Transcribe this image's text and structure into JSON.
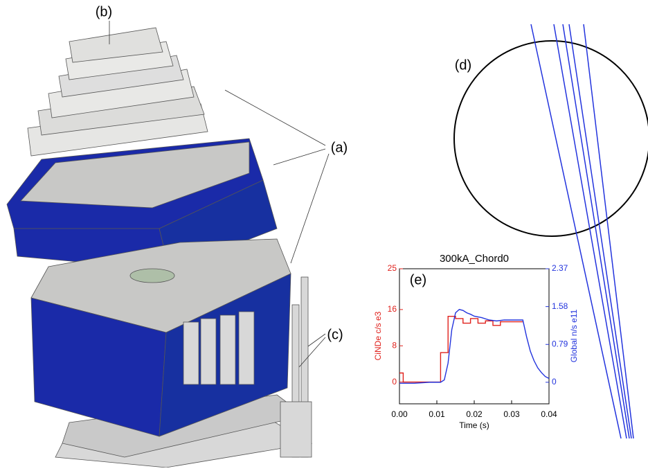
{
  "labels": {
    "a": "(a)",
    "b": "(b)",
    "c": "(c)",
    "d": "(d)",
    "e": "(e)"
  },
  "chart_data": {
    "type": "line",
    "title": "300kA_Chord0",
    "x_label": "Time (s)",
    "y_label": "CiNDe c/s e3",
    "y2_label": "Global n/s e11",
    "xlim": [
      0,
      0.04
    ],
    "xticks": [
      {
        "value": 0,
        "label": "0.00"
      },
      {
        "value": 0.01,
        "label": "0.01"
      },
      {
        "value": 0.02,
        "label": "0.02"
      },
      {
        "value": 0.03,
        "label": "0.03"
      },
      {
        "value": 0.04,
        "label": "0.04"
      }
    ],
    "ylim": [
      -4.8,
      25
    ],
    "yticks": [
      0,
      8,
      16,
      25
    ],
    "y2lim": [
      -0.45,
      2.37
    ],
    "y2ticks": [
      0,
      0.79,
      1.58,
      2.37
    ],
    "series": [
      {
        "color": "#e0201b",
        "step": true,
        "x": [
          0,
          0.001,
          0.011,
          0.013,
          0.015,
          0.017,
          0.019,
          0.021,
          0.023,
          0.025,
          0.027,
          0.029,
          0.031,
          0.033
        ],
        "values": [
          2,
          0,
          6.5,
          14.5,
          14,
          13,
          14,
          13,
          13.5,
          12.5,
          13.3,
          13.3,
          13.3,
          13.3
        ]
      },
      {
        "color": "#2233dd",
        "axis": "y2",
        "x": [
          0,
          0.004,
          0.008,
          0.011,
          0.012,
          0.013,
          0.014,
          0.015,
          0.016,
          0.017,
          0.018,
          0.019,
          0.02,
          0.022,
          0.024,
          0.026,
          0.028,
          0.03,
          0.033,
          0.034,
          0.035,
          0.036,
          0.037,
          0.038,
          0.039,
          0.04
        ],
        "values": [
          -0.02,
          -0.02,
          0,
          0,
          0.05,
          0.4,
          1.1,
          1.45,
          1.52,
          1.5,
          1.45,
          1.42,
          1.38,
          1.35,
          1.3,
          1.28,
          1.3,
          1.3,
          1.3,
          0.95,
          0.65,
          0.45,
          0.3,
          0.2,
          0.12,
          0.08
        ]
      }
    ]
  }
}
